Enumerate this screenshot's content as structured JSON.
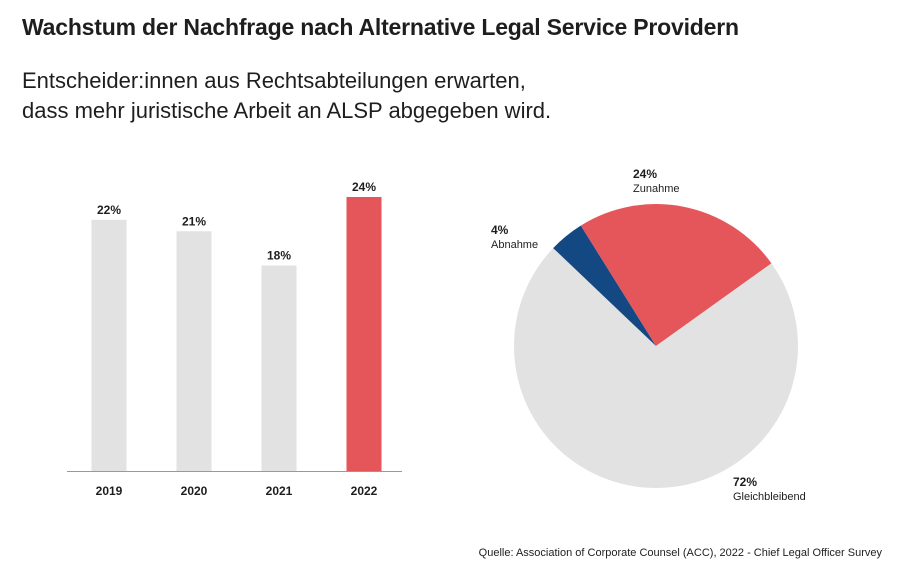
{
  "title": "Wachstum der Nachfrage nach Alternative Legal Service Providern",
  "subtitle_lines": [
    "Entscheider:innen aus Rechtsabteilungen erwarten,",
    "dass mehr juristische Arbeit an ALSP abgegeben wird."
  ],
  "source": "Quelle: Association of Corporate Counsel (ACC), 2022 - Chief Legal Officer Survey",
  "colors": {
    "neutral": "#e2e2e2",
    "accent": "#e5565b",
    "dark_blue": "#144883",
    "axis": "#999999",
    "text": "#1e1e1e"
  },
  "chart_data": [
    {
      "type": "bar",
      "categories": [
        "2019",
        "2020",
        "2021",
        "2022"
      ],
      "values": [
        22,
        21,
        18,
        24
      ],
      "value_labels": [
        "22%",
        "21%",
        "18%",
        "24%"
      ],
      "highlight": "2022",
      "ylim": [
        0,
        24
      ],
      "title": "",
      "xlabel": "",
      "ylabel": ""
    },
    {
      "type": "pie",
      "slices": [
        {
          "label": "Zunahme",
          "value": 24,
          "pct_label": "24%",
          "color": "#e5565b"
        },
        {
          "label": "Gleichbleibend",
          "value": 72,
          "pct_label": "72%",
          "color": "#e2e2e2"
        },
        {
          "label": "Abnahme",
          "value": 4,
          "pct_label": "4%",
          "color": "#144883"
        }
      ]
    }
  ]
}
